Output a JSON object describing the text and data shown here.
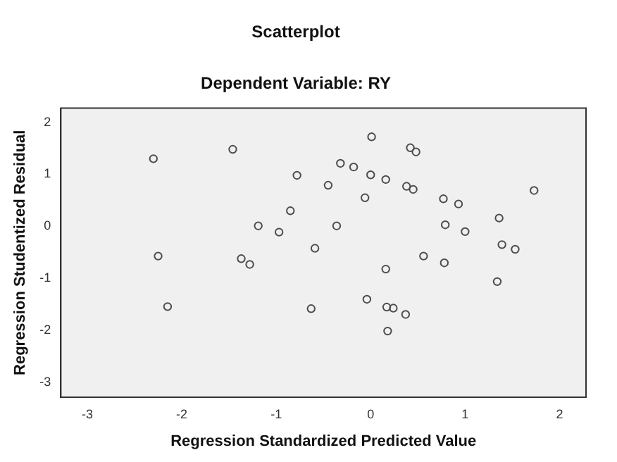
{
  "chart_data": {
    "type": "scatter",
    "title": "Scatterplot",
    "subtitle": "Dependent Variable: RY",
    "xlabel": "Regression Standardized Predicted Value",
    "ylabel": "Regression Studentized Residual",
    "series": [
      {
        "color": "#4d4d4d",
        "x": [
          -2.3,
          -1.46,
          -0.78,
          -0.85,
          -1.19,
          -0.97,
          -2.25,
          -1.37,
          -1.28,
          -2.15,
          -0.63,
          0.01,
          0.42,
          0.48,
          -0.32,
          -0.18,
          0.0,
          0.16,
          -0.45,
          0.38,
          0.45,
          -0.06,
          0.77,
          0.93,
          1.73,
          -0.36,
          0.79,
          1.0,
          1.36,
          1.39,
          1.53,
          -0.59,
          0.56,
          0.78,
          0.16,
          1.34,
          -0.04,
          0.17,
          0.24,
          0.37,
          0.18
        ],
        "values": [
          1.3,
          1.48,
          0.98,
          0.3,
          0.01,
          -0.11,
          -0.57,
          -0.62,
          -0.73,
          -1.54,
          -1.58,
          1.72,
          1.51,
          1.43,
          1.21,
          1.14,
          0.99,
          0.9,
          0.79,
          0.77,
          0.71,
          0.55,
          0.53,
          0.43,
          0.69,
          0.01,
          0.03,
          -0.1,
          0.16,
          -0.35,
          -0.44,
          -0.42,
          -0.57,
          -0.7,
          -0.82,
          -1.06,
          -1.4,
          -1.55,
          -1.57,
          -1.69,
          -2.01
        ]
      }
    ],
    "xlim": [
      -3.28,
      2.28
    ],
    "ylim": [
      -3.28,
      2.27
    ],
    "xticks": [
      -3,
      -2,
      -1,
      0,
      1,
      2
    ],
    "yticks": [
      -3,
      -2,
      -1,
      0,
      1,
      2
    ],
    "grid": false,
    "legend": false,
    "marker": "circle"
  }
}
